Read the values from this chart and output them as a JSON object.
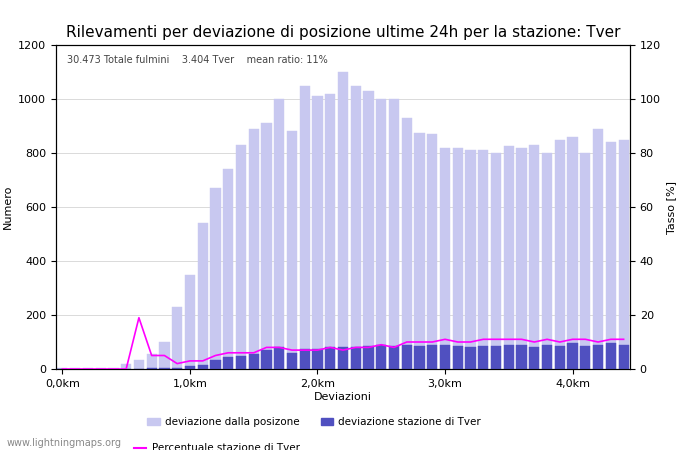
{
  "title": "Rilevamenti per deviazione di posizione ultime 24h per la stazione: Tver",
  "subtitle": "30.473 Totale fulmini    3.404 Tver    mean ratio: 11%",
  "xlabel": "Deviazioni",
  "ylabel_left": "Numero",
  "ylabel_right": "Tasso [%]",
  "watermark": "www.lightningmaps.org",
  "legend": [
    "deviazione dalla posizone",
    "deviazione stazione di Tver",
    "Percentuale stazione di Tver"
  ],
  "xtick_labels": [
    "0,0km",
    "1,0km",
    "2,0km",
    "3,0km",
    "4,0km"
  ],
  "xtick_positions": [
    0,
    10,
    20,
    30,
    40
  ],
  "ylim_left": [
    0,
    1200
  ],
  "ylim_right": [
    0,
    120
  ],
  "yticks_left": [
    0,
    200,
    400,
    600,
    800,
    1000,
    1200
  ],
  "yticks_right": [
    0,
    20,
    40,
    60,
    80,
    100,
    120
  ],
  "bar_width": 0.8,
  "total_bars": [
    5,
    2,
    2,
    2,
    5,
    20,
    35,
    55,
    100,
    230,
    350,
    540,
    670,
    740,
    830,
    890,
    910,
    1000,
    880,
    1050,
    1010,
    1020,
    1100,
    1050,
    1030,
    1000,
    1000,
    930,
    875,
    870,
    820,
    820,
    810,
    810,
    800,
    825,
    820,
    830,
    800,
    850,
    860,
    800,
    890,
    840,
    850
  ],
  "station_bars": [
    0,
    0,
    0,
    0,
    0,
    0,
    0,
    5,
    5,
    5,
    10,
    15,
    35,
    45,
    50,
    55,
    70,
    80,
    60,
    75,
    75,
    80,
    80,
    80,
    85,
    90,
    85,
    90,
    85,
    90,
    90,
    85,
    80,
    85,
    85,
    90,
    90,
    80,
    90,
    85,
    95,
    85,
    90,
    95,
    90
  ],
  "percentage": [
    0,
    0,
    0,
    0,
    0,
    0,
    19,
    5,
    5,
    2,
    3,
    3,
    5,
    6,
    6,
    6,
    8,
    8,
    7,
    7,
    7,
    8,
    7,
    8,
    8,
    9,
    8,
    10,
    10,
    10,
    11,
    10,
    10,
    11,
    11,
    11,
    11,
    10,
    11,
    10,
    11,
    11,
    10,
    11,
    11
  ],
  "bar_color_light": "#c8c8f0",
  "bar_color_dark": "#5050c0",
  "line_color": "#ff00ff",
  "background_color": "#ffffff",
  "grid_color": "#cccccc",
  "title_fontsize": 11,
  "label_fontsize": 8,
  "tick_fontsize": 8
}
